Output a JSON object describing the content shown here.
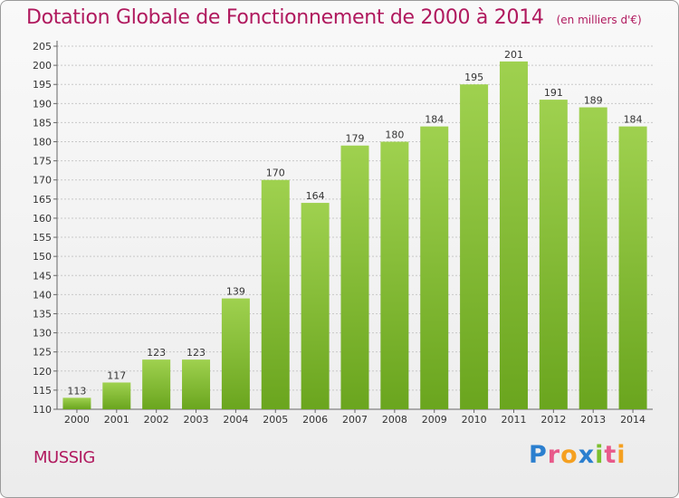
{
  "chart_data": {
    "type": "bar",
    "title": "Dotation Globale de Fonctionnement de 2000 à 2014",
    "subtitle": "(en milliers d'€)",
    "categories": [
      "2000",
      "2001",
      "2002",
      "2003",
      "2004",
      "2005",
      "2006",
      "2007",
      "2008",
      "2009",
      "2010",
      "2011",
      "2012",
      "2013",
      "2014"
    ],
    "values": [
      113,
      117,
      123,
      123,
      139,
      170,
      164,
      179,
      180,
      184,
      195,
      201,
      191,
      189,
      184
    ],
    "ylim": [
      110,
      205
    ],
    "yticks": [
      110,
      115,
      120,
      125,
      130,
      135,
      140,
      145,
      150,
      155,
      160,
      165,
      170,
      175,
      180,
      185,
      190,
      195,
      200,
      205
    ],
    "xlabel": "",
    "ylabel": "",
    "grid": true,
    "bar_color": "#8cc63f"
  },
  "commune": "MUSSIG",
  "logo": [
    "P",
    "r",
    "o",
    "x",
    "i",
    "t",
    "i"
  ]
}
